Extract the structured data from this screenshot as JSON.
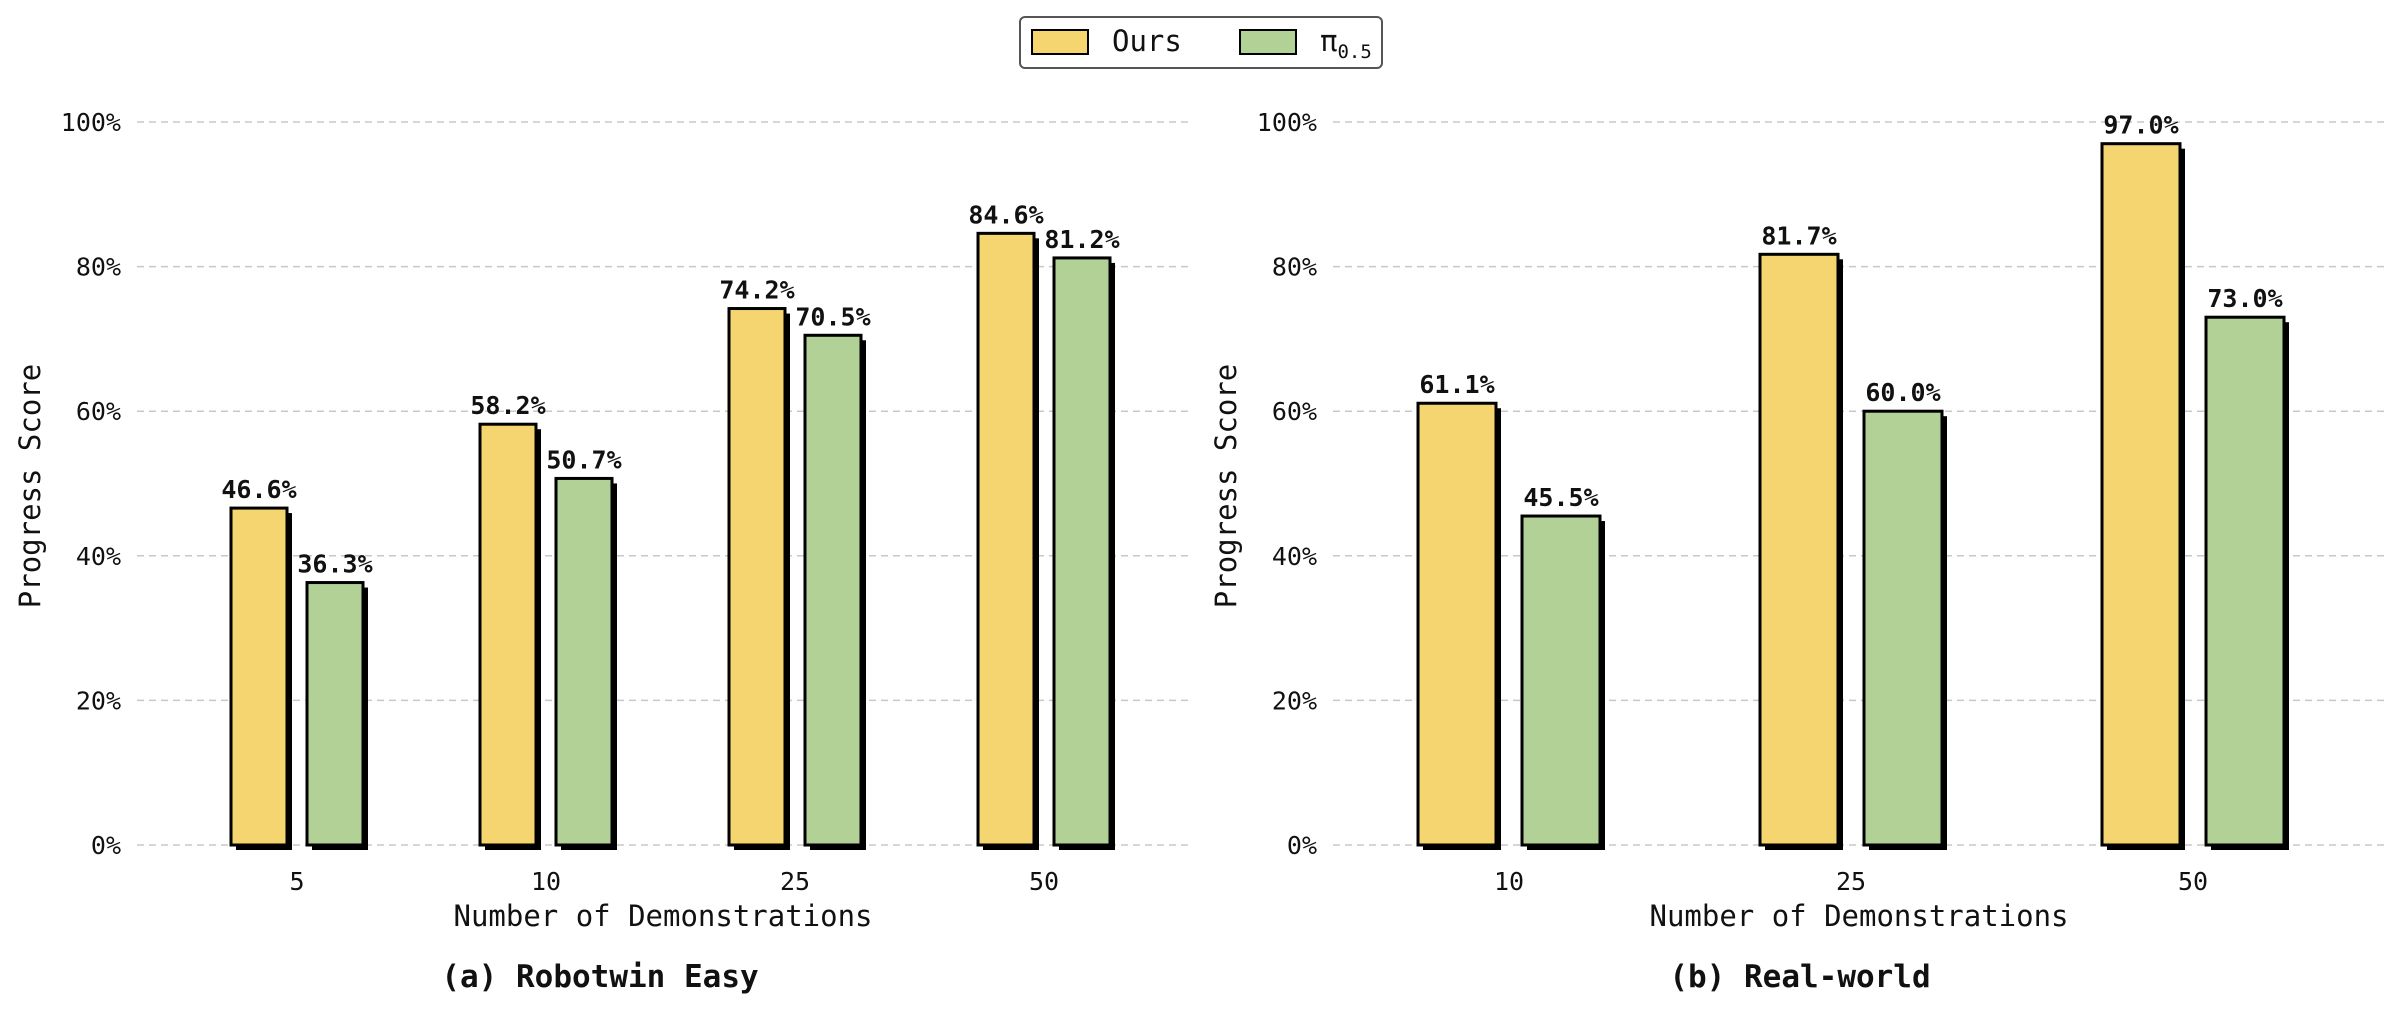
{
  "legend": {
    "items": [
      {
        "label": "Ours",
        "color": "#F5D570"
      },
      {
        "label": "π",
        "sub": "0.5",
        "color": "#B2D197"
      }
    ]
  },
  "chart_data": [
    {
      "type": "bar",
      "caption": "(a) Robotwin Easy",
      "xlabel": "Number of Demonstrations",
      "ylabel": "Progress Score",
      "ylim": [
        0,
        100
      ],
      "yticks": [
        "0%",
        "20%",
        "40%",
        "60%",
        "80%",
        "100%"
      ],
      "grid": true,
      "categories": [
        "5",
        "10",
        "25",
        "50"
      ],
      "series": [
        {
          "name": "Ours",
          "values": [
            46.6,
            58.2,
            74.2,
            84.6
          ],
          "labels": [
            "46.6%",
            "58.2%",
            "74.2%",
            "84.6%"
          ],
          "color": "#F5D570"
        },
        {
          "name": "π0.5",
          "values": [
            36.3,
            50.7,
            70.5,
            81.2
          ],
          "labels": [
            "36.3%",
            "50.7%",
            "70.5%",
            "81.2%"
          ],
          "color": "#B2D197"
        }
      ]
    },
    {
      "type": "bar",
      "caption": "(b) Real-world",
      "xlabel": "Number of Demonstrations",
      "ylabel": "Progress Score",
      "ylim": [
        0,
        100
      ],
      "yticks": [
        "0%",
        "20%",
        "40%",
        "60%",
        "80%",
        "100%"
      ],
      "grid": true,
      "categories": [
        "10",
        "25",
        "50"
      ],
      "series": [
        {
          "name": "Ours",
          "values": [
            61.1,
            81.7,
            97.0
          ],
          "labels": [
            "61.1%",
            "81.7%",
            "97.0%"
          ],
          "color": "#F5D570"
        },
        {
          "name": "π0.5",
          "values": [
            45.5,
            60.0,
            73.0
          ],
          "labels": [
            "45.5%",
            "60.0%",
            "73.0%"
          ],
          "color": "#B2D197"
        }
      ]
    }
  ]
}
